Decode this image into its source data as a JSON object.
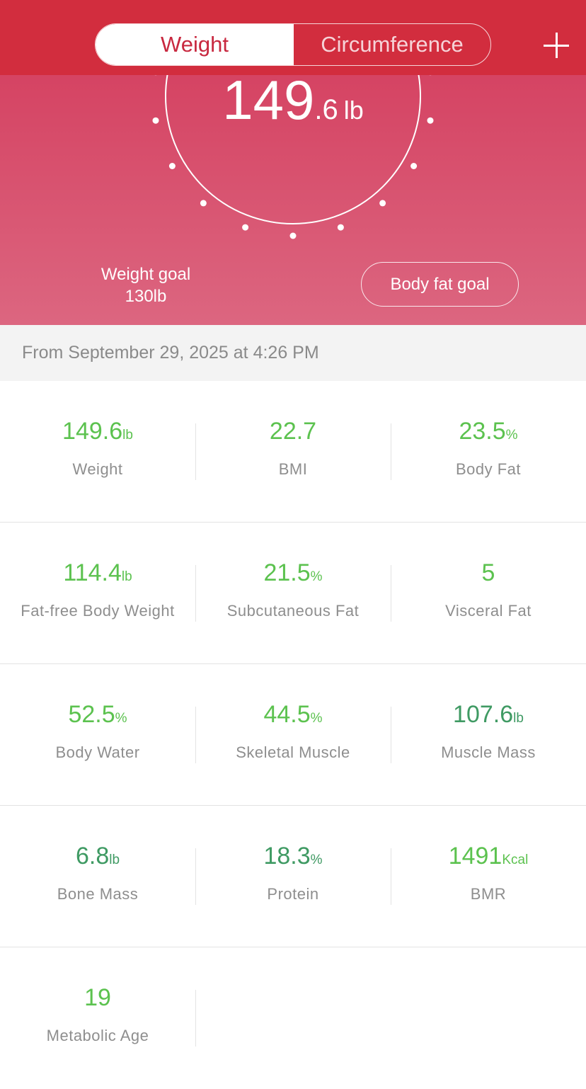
{
  "header": {
    "tabs": [
      {
        "label": "Weight",
        "active": true
      },
      {
        "label": "Circumference",
        "active": false
      }
    ],
    "add_icon": "plus-icon"
  },
  "current": {
    "whole": "149",
    "decimal": ".6",
    "unit": "lb"
  },
  "weight_goal": {
    "label": "Weight goal",
    "value": "130lb"
  },
  "body_fat_goal_label": "Body fat goal",
  "date_text": "From September 29, 2025 at 4:26 PM",
  "colors": {
    "header": "#d22d3e",
    "green_light": "#5cc24f",
    "green_dark": "#3f9a63"
  },
  "metrics": [
    [
      {
        "value": "149.6",
        "unit": "lb",
        "label": "Weight",
        "color": "#5cc24f"
      },
      {
        "value": "22.7",
        "unit": "",
        "label": "BMI",
        "color": "#5cc24f"
      },
      {
        "value": "23.5",
        "unit": "%",
        "label": "Body Fat",
        "color": "#5cc24f"
      }
    ],
    [
      {
        "value": "114.4",
        "unit": "lb",
        "label": "Fat-free Body Weight",
        "color": "#5cc24f"
      },
      {
        "value": "21.5",
        "unit": "%",
        "label": "Subcutaneous Fat",
        "color": "#5cc24f"
      },
      {
        "value": "5",
        "unit": "",
        "label": "Visceral Fat",
        "color": "#5cc24f"
      }
    ],
    [
      {
        "value": "52.5",
        "unit": "%",
        "label": "Body Water",
        "color": "#5cc24f"
      },
      {
        "value": "44.5",
        "unit": "%",
        "label": "Skeletal Muscle",
        "color": "#5cc24f"
      },
      {
        "value": "107.6",
        "unit": "lb",
        "label": "Muscle Mass",
        "color": "#3f9a63"
      }
    ],
    [
      {
        "value": "6.8",
        "unit": "lb",
        "label": "Bone Mass",
        "color": "#3f9a63"
      },
      {
        "value": "18.3",
        "unit": "%",
        "label": "Protein",
        "color": "#3f9a63"
      },
      {
        "value": "1491",
        "unit": "Kcal",
        "label": "BMR",
        "color": "#5cc24f"
      }
    ],
    [
      {
        "value": "19",
        "unit": "",
        "label": "Metabolic Age",
        "color": "#5cc24f"
      }
    ]
  ]
}
